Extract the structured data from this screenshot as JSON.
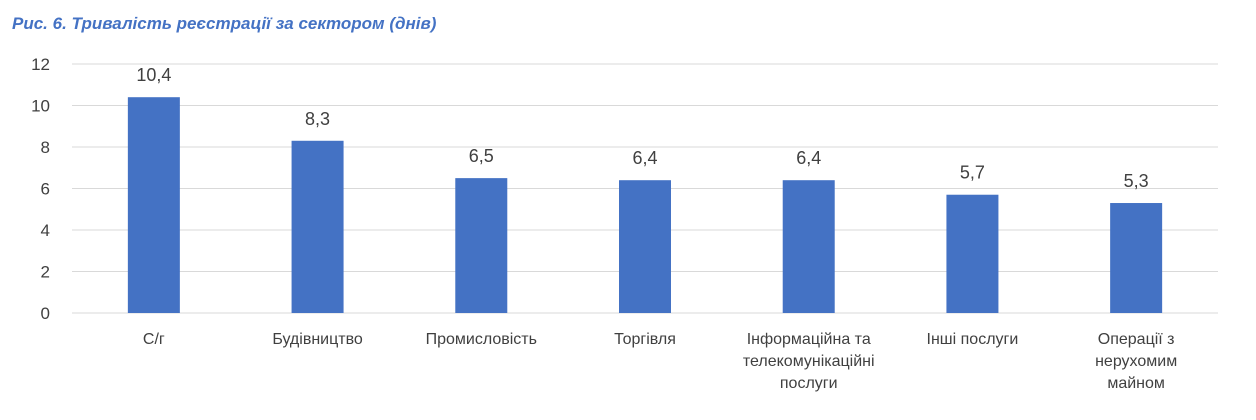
{
  "chart_data": {
    "type": "bar",
    "title": "Рис.  6. Тривалість реєстрації за сектором (днів)",
    "categories": [
      [
        "С/г"
      ],
      [
        "Будівництво"
      ],
      [
        "Промисловість"
      ],
      [
        "Торгівля"
      ],
      [
        "Інформаційна та",
        "телекомунікаційні",
        "послуги"
      ],
      [
        "Інші послуги"
      ],
      [
        "Операції з",
        "нерухомим",
        "майном"
      ]
    ],
    "values": [
      10.4,
      8.3,
      6.5,
      6.4,
      6.4,
      5.7,
      5.3
    ],
    "data_labels": [
      "10,4",
      "8,3",
      "6,5",
      "6,4",
      "6,4",
      "5,7",
      "5,3"
    ],
    "yticks": [
      0,
      2,
      4,
      6,
      8,
      10,
      12
    ],
    "ylim": [
      0,
      12
    ],
    "grid": true,
    "legend": false,
    "bar_color": "#4472c4",
    "title_color": "#4472c4",
    "grid_color": "#d9d9d9",
    "text_color": "#404040"
  }
}
